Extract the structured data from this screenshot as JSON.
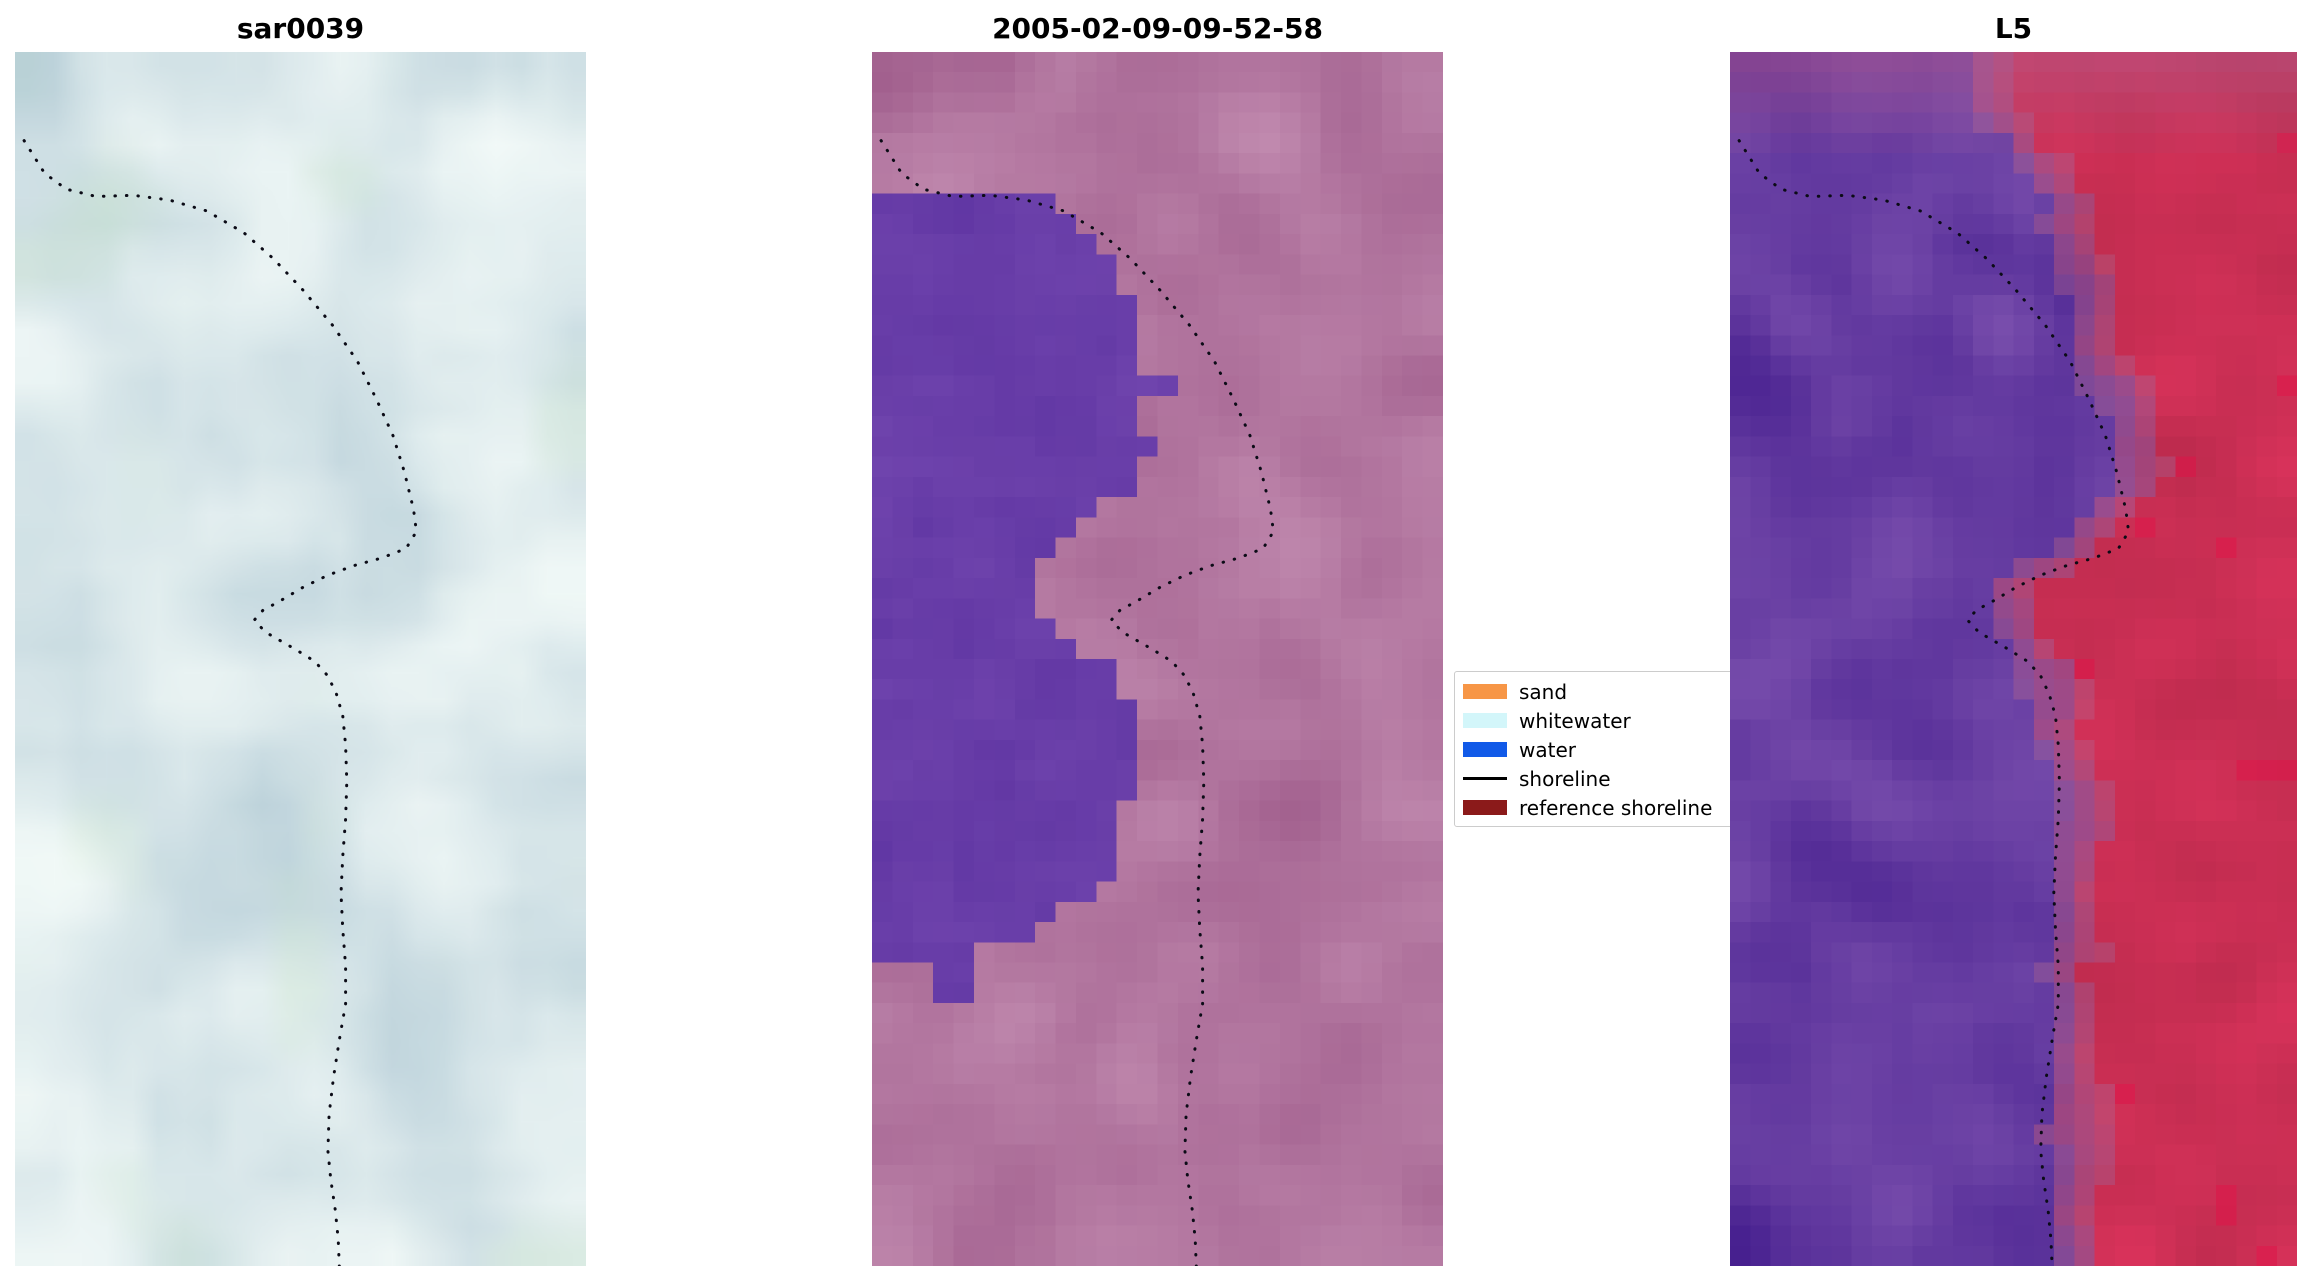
{
  "figure": {
    "background": "#ffffff",
    "panels": [
      {
        "title": "sar0039",
        "render": {
          "kind": "smooth",
          "seed": 7,
          "colors": [
            "#b4ccd6",
            "#f4fbf9",
            "#cde6cf"
          ]
        }
      },
      {
        "title": "2005-02-09-09-52-58",
        "render": {
          "kind": "classified",
          "seed": 13,
          "base": [
            "#a2608e",
            "#c089ae"
          ],
          "water": [
            "#5f35a2",
            "#7448b0"
          ]
        }
      },
      {
        "title": "L5",
        "render": {
          "kind": "falsecolor",
          "seed": 29,
          "purple": [
            "#47208f",
            "#7b50ae"
          ],
          "red": [
            "#b12848",
            "#d8325a"
          ],
          "bright_red": "#e01448",
          "transition": "#b06a93",
          "top_pink": "#b75f8f"
        }
      }
    ],
    "legend": {
      "entries": [
        {
          "label": "sand",
          "color": "#f79646",
          "style": "patch"
        },
        {
          "label": "whitewater",
          "color": "#d3f6fa",
          "style": "patch"
        },
        {
          "label": "water",
          "color": "#115ae8",
          "style": "patch"
        },
        {
          "label": "shoreline",
          "color": "#000000",
          "style": "line"
        },
        {
          "label": "reference shoreline",
          "color": "#8b1a1a",
          "style": "patch"
        }
      ]
    }
  },
  "chart_data": {
    "type": "heatmap",
    "subtype": "coastal-satellite-image-triptych",
    "title": "",
    "panel_titles": [
      "sar0039",
      "2005-02-09-09-52-58",
      "L5"
    ],
    "legend_entries": [
      "sand",
      "whitewater",
      "water",
      "shoreline",
      "reference shoreline"
    ],
    "legend_position": "center-right",
    "shoreline_norm_xy": [
      [
        0.016,
        0.073
      ],
      [
        0.052,
        0.1
      ],
      [
        0.09,
        0.113
      ],
      [
        0.142,
        0.119
      ],
      [
        0.207,
        0.118
      ],
      [
        0.271,
        0.122
      ],
      [
        0.336,
        0.131
      ],
      [
        0.401,
        0.149
      ],
      [
        0.452,
        0.17
      ],
      [
        0.504,
        0.196
      ],
      [
        0.556,
        0.225
      ],
      [
        0.6,
        0.255
      ],
      [
        0.633,
        0.286
      ],
      [
        0.662,
        0.316
      ],
      [
        0.682,
        0.346
      ],
      [
        0.698,
        0.377
      ],
      [
        0.703,
        0.395
      ],
      [
        0.685,
        0.409
      ],
      [
        0.641,
        0.417
      ],
      [
        0.594,
        0.423
      ],
      [
        0.548,
        0.431
      ],
      [
        0.504,
        0.441
      ],
      [
        0.465,
        0.452
      ],
      [
        0.434,
        0.46
      ],
      [
        0.419,
        0.468
      ],
      [
        0.439,
        0.478
      ],
      [
        0.465,
        0.485
      ],
      [
        0.491,
        0.492
      ],
      [
        0.525,
        0.502
      ],
      [
        0.548,
        0.514
      ],
      [
        0.563,
        0.529
      ],
      [
        0.574,
        0.547
      ],
      [
        0.579,
        0.571
      ],
      [
        0.581,
        0.601
      ],
      [
        0.579,
        0.632
      ],
      [
        0.574,
        0.662
      ],
      [
        0.571,
        0.693
      ],
      [
        0.574,
        0.723
      ],
      [
        0.579,
        0.753
      ],
      [
        0.579,
        0.784
      ],
      [
        0.568,
        0.814
      ],
      [
        0.558,
        0.844
      ],
      [
        0.55,
        0.875
      ],
      [
        0.548,
        0.905
      ],
      [
        0.553,
        0.929
      ],
      [
        0.561,
        0.954
      ],
      [
        0.566,
        0.978
      ],
      [
        0.568,
        1.0
      ]
    ],
    "water_class_right_boundary_norm_yx": [
      [
        0.125,
        0.33
      ],
      [
        0.145,
        0.37
      ],
      [
        0.165,
        0.41
      ],
      [
        0.19,
        0.44
      ],
      [
        0.22,
        0.455
      ],
      [
        0.26,
        0.46
      ],
      [
        0.268,
        0.55
      ],
      [
        0.285,
        0.55
      ],
      [
        0.292,
        0.47
      ],
      [
        0.34,
        0.47
      ],
      [
        0.365,
        0.455
      ],
      [
        0.39,
        0.38
      ],
      [
        0.415,
        0.285
      ],
      [
        0.45,
        0.27
      ],
      [
        0.475,
        0.31
      ],
      [
        0.5,
        0.39
      ],
      [
        0.53,
        0.44
      ],
      [
        0.565,
        0.465
      ],
      [
        0.6,
        0.455
      ],
      [
        0.635,
        0.44
      ],
      [
        0.66,
        0.42
      ],
      [
        0.685,
        0.4
      ],
      [
        0.705,
        0.36
      ],
      [
        0.72,
        0.3
      ],
      [
        0.735,
        0.24
      ],
      [
        0.748,
        0.155
      ]
    ],
    "l5_purple_red_boundary_norm_yx": [
      [
        0.0,
        0.46
      ],
      [
        0.06,
        0.5
      ],
      [
        0.12,
        0.57
      ],
      [
        0.2,
        0.63
      ],
      [
        0.28,
        0.68
      ],
      [
        0.35,
        0.71
      ],
      [
        0.4,
        0.62
      ],
      [
        0.44,
        0.5
      ],
      [
        0.47,
        0.48
      ],
      [
        0.52,
        0.56
      ],
      [
        0.58,
        0.61
      ],
      [
        0.65,
        0.62
      ],
      [
        0.75,
        0.61
      ],
      [
        0.85,
        0.6
      ],
      [
        0.93,
        0.6
      ],
      [
        1.0,
        0.63
      ]
    ]
  }
}
